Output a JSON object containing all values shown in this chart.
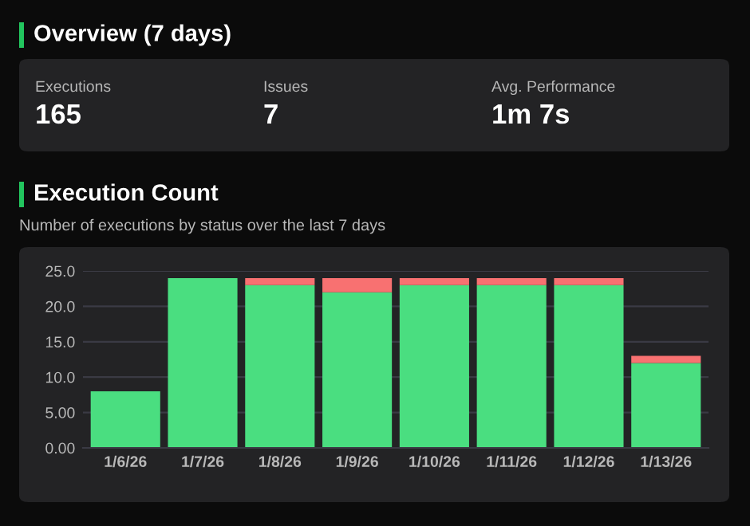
{
  "chart_data": [
    {
      "type": "other",
      "title": "Overview (7 days)",
      "annotations": [
        "Executions",
        "165",
        "Issues",
        "7",
        "Avg. Performance",
        "1m 7s"
      ]
    },
    {
      "type": "bar",
      "title": "Execution Count",
      "subtitle": "Number of executions by status over the last 7 days",
      "categories": [
        "1/6/26",
        "1/7/26",
        "1/8/26",
        "1/9/26",
        "1/10/26",
        "1/11/26",
        "1/12/26",
        "1/13/26"
      ],
      "stacked": true,
      "series": [
        {
          "color": "#4ade80",
          "values": [
            8,
            24,
            23,
            22,
            23,
            23,
            23,
            12
          ]
        },
        {
          "color": "#f87171",
          "values": [
            0,
            0,
            1,
            2,
            1,
            1,
            1,
            1
          ]
        }
      ],
      "ylim": [
        0,
        25
      ],
      "yticks": [
        {
          "value": 0,
          "label": "0.00"
        },
        {
          "value": 5,
          "label": "5.00"
        },
        {
          "value": 10,
          "label": "10.0"
        },
        {
          "value": 15,
          "label": "15.0"
        },
        {
          "value": 20,
          "label": "20.0"
        },
        {
          "value": 25,
          "label": "25.0"
        }
      ],
      "grid": "y",
      "legend": false
    }
  ]
}
